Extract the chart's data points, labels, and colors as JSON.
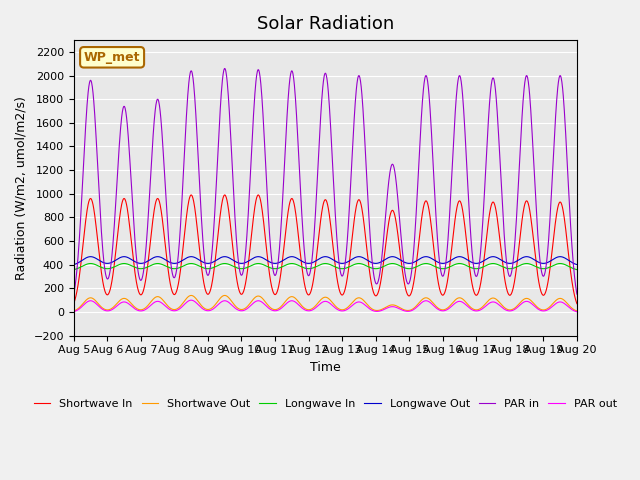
{
  "title": "Solar Radiation",
  "xlabel": "Time",
  "ylabel": "Radiation (W/m2, umol/m2/s)",
  "ylim": [
    -200,
    2300
  ],
  "yticks": [
    -200,
    0,
    200,
    400,
    600,
    800,
    1000,
    1200,
    1400,
    1600,
    1800,
    2000,
    2200
  ],
  "bg_color": "#e8e8e8",
  "legend_labels": [
    "Shortwave In",
    "Shortwave Out",
    "Longwave In",
    "Longwave Out",
    "PAR in",
    "PAR out"
  ],
  "line_colors": [
    "#ff0000",
    "#ff9900",
    "#00cc00",
    "#0000cc",
    "#9900cc",
    "#ff00ff"
  ],
  "annotation_text": "WP_met",
  "annotation_bg": "#ffffcc",
  "annotation_border": "#aa6600",
  "n_days": 15,
  "points_per_day": 96,
  "shortwave_in_peaks": [
    960,
    960,
    960,
    990,
    990,
    990,
    960,
    950,
    950,
    860,
    940,
    940,
    930,
    940,
    930
  ],
  "par_in_peaks": [
    1960,
    1740,
    1800,
    2040,
    2060,
    2050,
    2040,
    2020,
    2000,
    1250,
    2000,
    2000,
    1980,
    2000,
    2000
  ],
  "shortwave_out_peaks": [
    120,
    115,
    130,
    140,
    140,
    135,
    130,
    125,
    120,
    60,
    120,
    120,
    118,
    115,
    115
  ],
  "par_out_peaks": [
    100,
    90,
    95,
    105,
    100,
    100,
    100,
    95,
    90,
    50,
    100,
    95,
    90,
    95,
    90
  ],
  "lw_in_base": 350,
  "lw_out_base": 390,
  "lw_amplitude": 60,
  "xtick_labels": [
    "Aug 5",
    "Aug 6",
    "Aug 7",
    "Aug 8",
    "Aug 9",
    "Aug 10",
    "Aug 11",
    "Aug 12",
    "Aug 13",
    "Aug 14",
    "Aug 15",
    "Aug 16",
    "Aug 17",
    "Aug 18",
    "Aug 19",
    "Aug 20"
  ]
}
